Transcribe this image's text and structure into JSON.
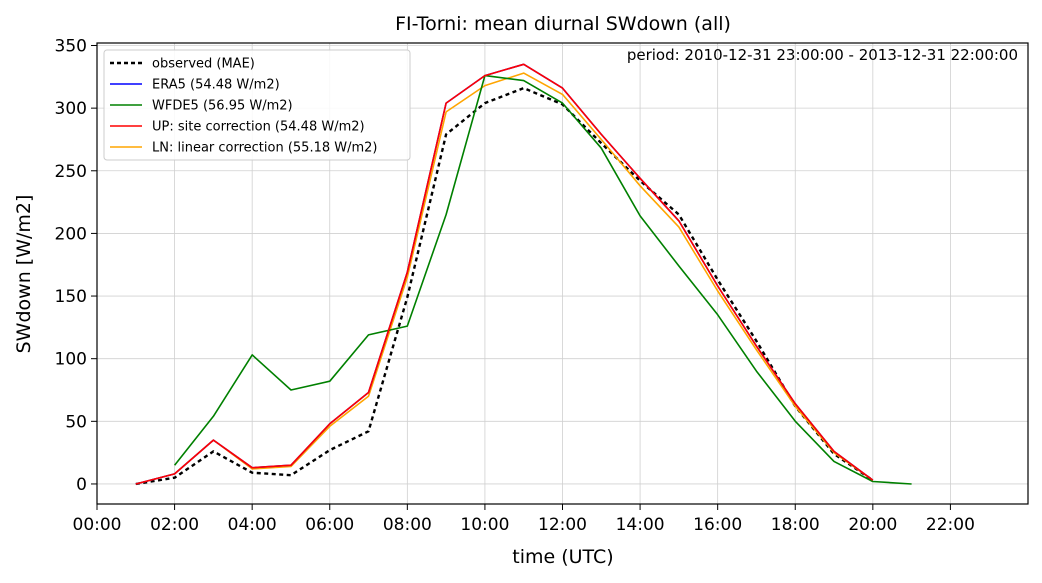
{
  "chart_data": {
    "type": "line",
    "title": "FI-Torni: mean diurnal SWdown (all)",
    "annotation": "period: 2010-12-31 23:00:00 - 2013-12-31 22:00:00",
    "xlabel": "time (UTC)",
    "ylabel": "SWdown [W/m2]",
    "xlim": [
      0,
      24
    ],
    "ylim": [
      -16,
      352
    ],
    "grid": true,
    "legend_position": "upper-left",
    "x_ticks": [
      0,
      2,
      4,
      6,
      8,
      10,
      12,
      14,
      16,
      18,
      20,
      22
    ],
    "x_tick_labels": [
      "00:00",
      "02:00",
      "04:00",
      "06:00",
      "08:00",
      "10:00",
      "12:00",
      "14:00",
      "16:00",
      "18:00",
      "20:00",
      "22:00"
    ],
    "y_ticks": [
      0,
      50,
      100,
      150,
      200,
      250,
      300,
      350
    ],
    "y_tick_labels": [
      "0",
      "50",
      "100",
      "150",
      "200",
      "250",
      "300",
      "350"
    ],
    "series": [
      {
        "name": "observed (MAE)",
        "color": "#000000",
        "dashed": true,
        "x": [
          1,
          2,
          3,
          4,
          5,
          6,
          7,
          8,
          9,
          10,
          11,
          12,
          13,
          14,
          15,
          16,
          17,
          18,
          19,
          20
        ],
        "y": [
          0,
          5,
          26,
          9,
          7,
          27,
          42,
          149,
          279,
          304,
          316,
          303,
          272,
          242,
          215,
          163,
          114,
          62,
          24,
          3
        ]
      },
      {
        "name": "ERA5 (54.48 W/m2)",
        "color": "#0000ff",
        "dashed": false,
        "x": [
          1,
          2,
          3,
          4,
          5,
          6,
          7,
          8,
          9,
          10,
          11,
          12,
          13,
          14,
          15,
          16,
          17,
          18,
          19,
          20
        ],
        "y": [
          0,
          8,
          35,
          13,
          15,
          48,
          73,
          169,
          304,
          326,
          335,
          316,
          279,
          244,
          210,
          158,
          110,
          64,
          26,
          3
        ]
      },
      {
        "name": "WFDE5 (56.95 W/m2)",
        "color": "#008000",
        "dashed": false,
        "x": [
          2,
          3,
          4,
          5,
          6,
          7,
          8,
          9,
          10,
          11,
          12,
          13,
          14,
          15,
          16,
          17,
          18,
          19,
          20,
          21
        ],
        "y": [
          15,
          54,
          103,
          75,
          82,
          119,
          126,
          215,
          326,
          322,
          304,
          268,
          214,
          174,
          135,
          90,
          50,
          18,
          2,
          0
        ]
      },
      {
        "name": "UP: site correction (54.48 W/m2)",
        "color": "#ff0000",
        "dashed": false,
        "x": [
          1,
          2,
          3,
          4,
          5,
          6,
          7,
          8,
          9,
          10,
          11,
          12,
          13,
          14,
          15,
          16,
          17,
          18,
          19,
          20
        ],
        "y": [
          0,
          8,
          35,
          13,
          15,
          48,
          73,
          169,
          304,
          326,
          335,
          316,
          279,
          244,
          210,
          158,
          110,
          64,
          26,
          3
        ]
      },
      {
        "name": "LN: linear correction (55.18 W/m2)",
        "color": "#ffa500",
        "dashed": false,
        "x": [
          1,
          2,
          3,
          4,
          5,
          6,
          7,
          8,
          9,
          10,
          11,
          12,
          13,
          14,
          15,
          16,
          17,
          18,
          19,
          20
        ],
        "y": [
          0,
          8,
          35,
          12,
          14,
          46,
          70,
          165,
          297,
          318,
          328,
          311,
          275,
          238,
          205,
          154,
          107,
          62,
          25,
          3
        ]
      }
    ]
  }
}
